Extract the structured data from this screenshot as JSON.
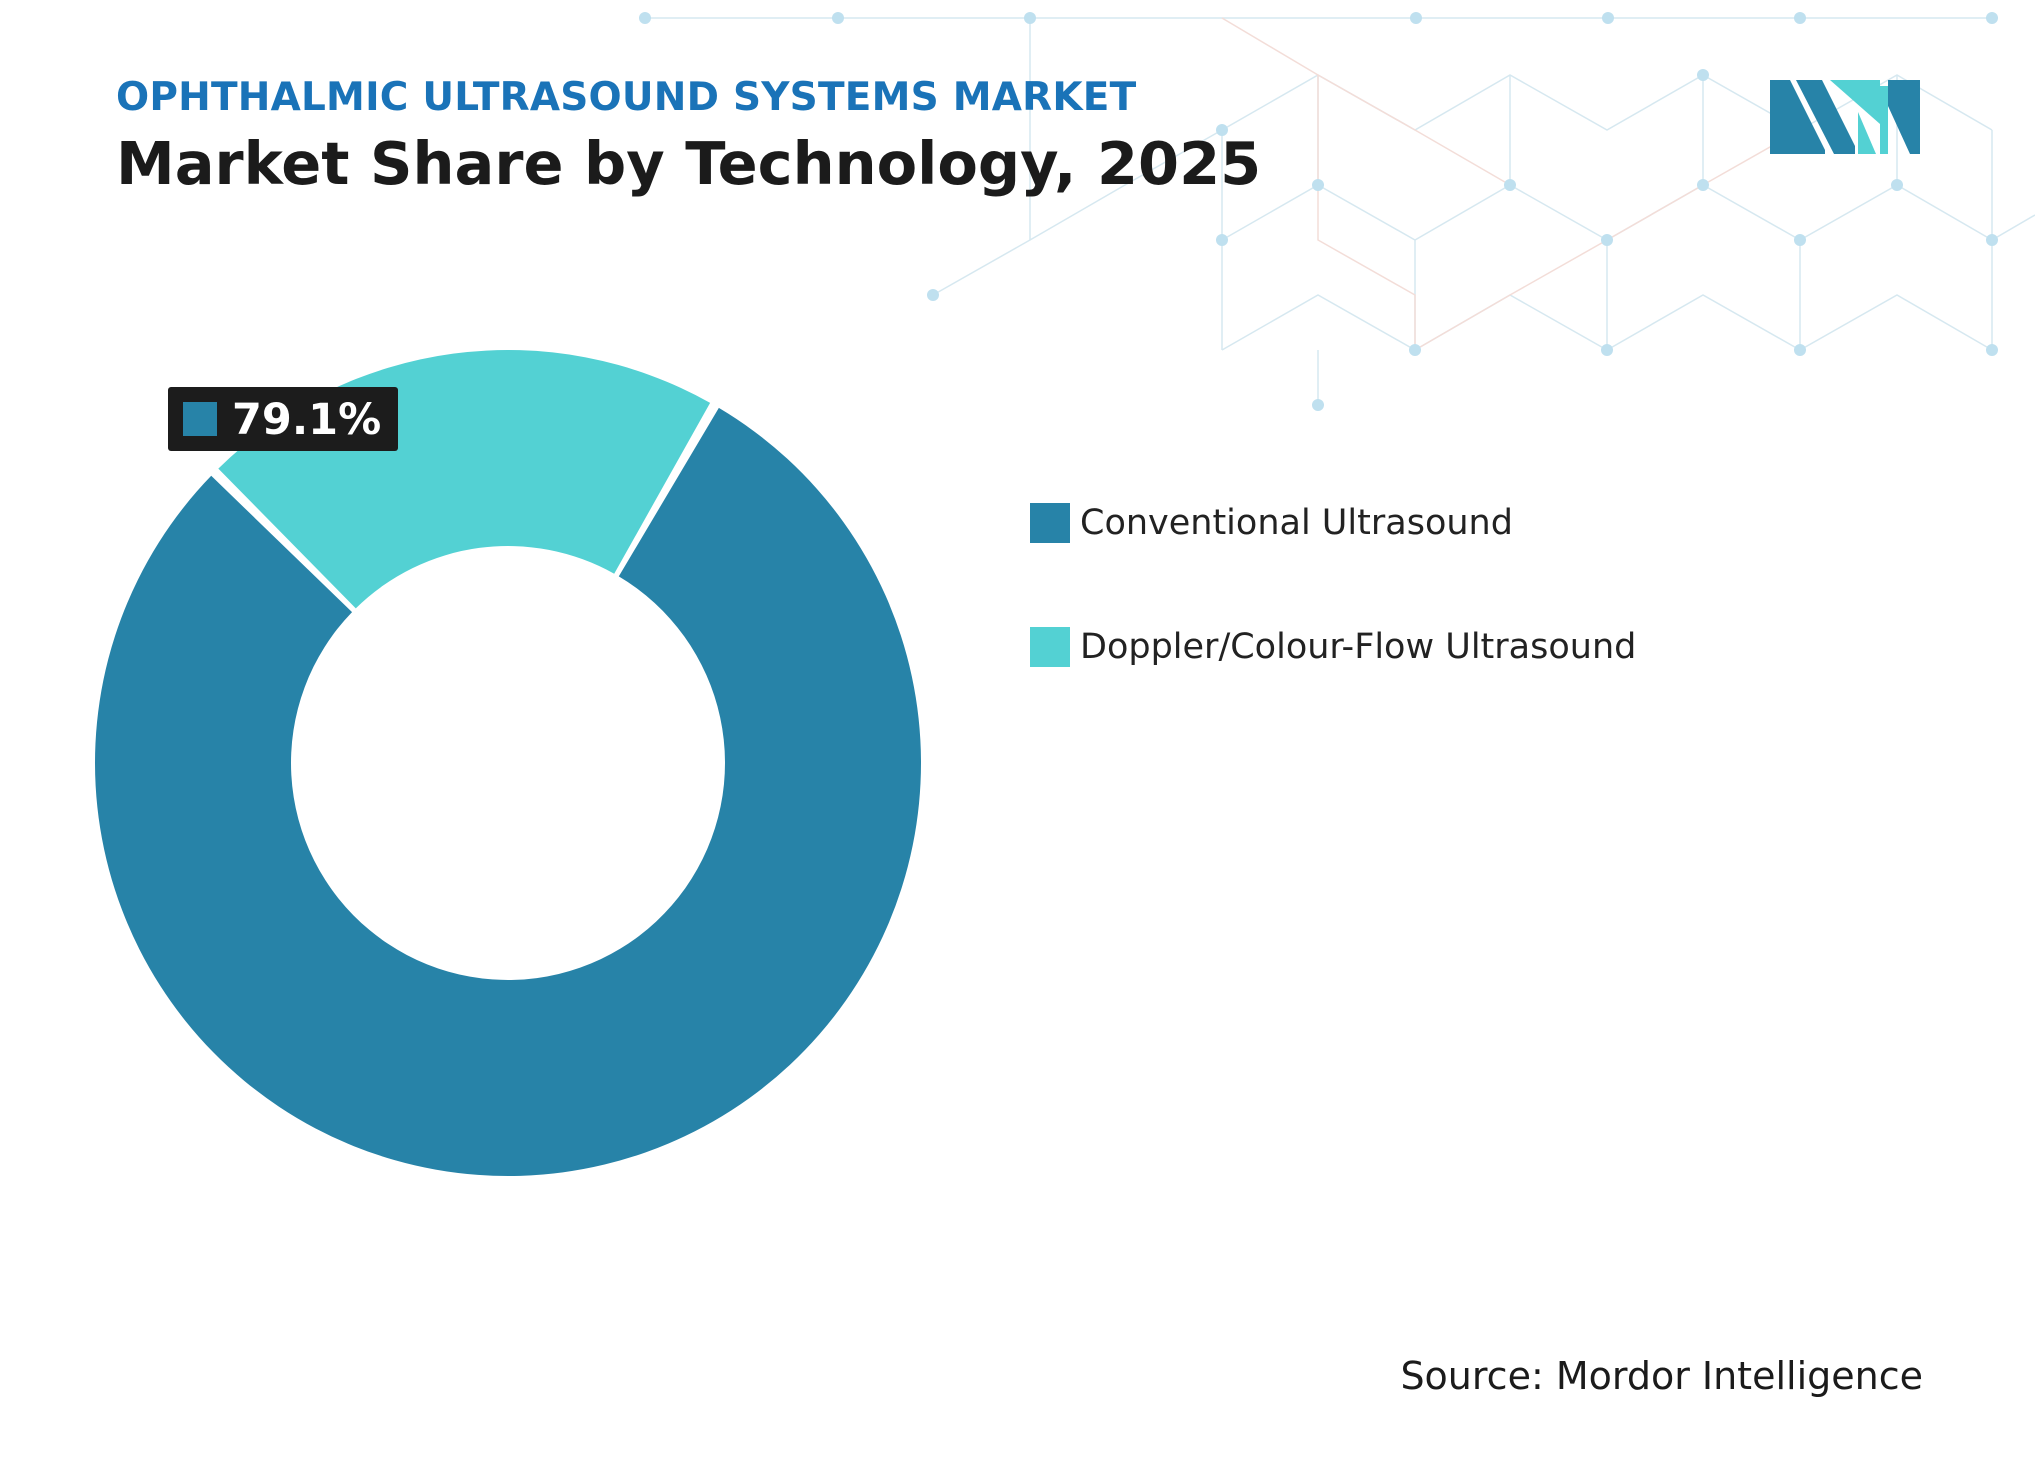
{
  "header": {
    "subtitle": "OPHTHALMIC ULTRASOUND SYSTEMS MARKET",
    "title": "Market Share by Technology, 2025"
  },
  "source": "Source: Mordor Intelligence",
  "colors": {
    "subtitle": "#1a73b8",
    "conventional": "#2783a8",
    "doppler": "#53d1d3",
    "callout_bg": "#1c1c1c"
  },
  "chart_data": {
    "type": "pie",
    "style": "donut",
    "title": "Market Share by Technology, 2025",
    "series": [
      {
        "name": "Conventional Ultrasound",
        "value": 79.1,
        "color": "#2783a8"
      },
      {
        "name": "Doppler/Colour-Flow Ultrasound",
        "value": 20.9,
        "color": "#53d1d3"
      }
    ],
    "data_labels": [
      {
        "series": "Conventional Ultrasound",
        "text": "79.1%"
      }
    ],
    "legend": "right"
  }
}
